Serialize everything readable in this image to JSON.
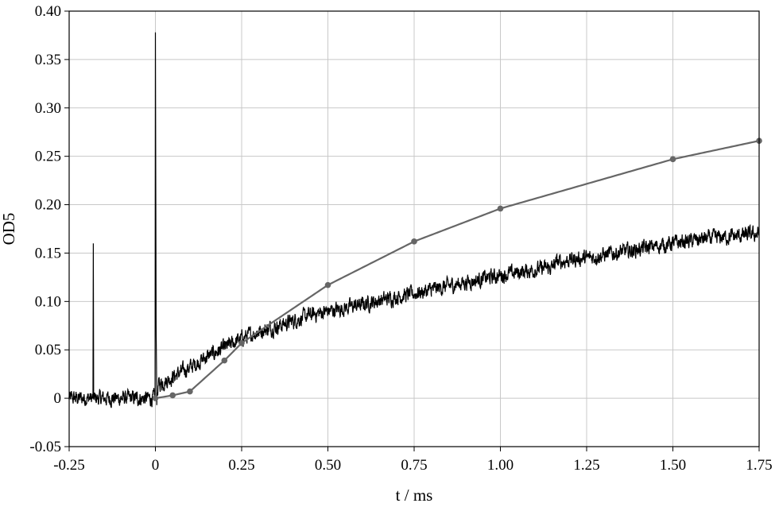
{
  "chart_data": {
    "type": "line",
    "title": "",
    "xlabel": "t / ms",
    "ylabel": "OD5",
    "xlim": [
      -0.25,
      1.75
    ],
    "ylim": [
      -0.05,
      0.4
    ],
    "grid": true,
    "x_ticks": [
      -0.25,
      0,
      0.25,
      0.5,
      0.75,
      1.0,
      1.25,
      1.5,
      1.75
    ],
    "x_tick_labels": [
      "-0.25",
      "0",
      "0.25",
      "0.50",
      "0.75",
      "1.00",
      "1.25",
      "1.50",
      "1.75"
    ],
    "y_ticks": [
      -0.05,
      0,
      0.05,
      0.1,
      0.15,
      0.2,
      0.25,
      0.3,
      0.35,
      0.4
    ],
    "y_tick_labels": [
      "-0.05",
      "0",
      "0.05",
      "0.10",
      "0.15",
      "0.20",
      "0.25",
      "0.30",
      "0.35",
      "0.40"
    ],
    "colors": {
      "measured": "#000000",
      "simulated": "#666666",
      "grid": "#c8c8c8"
    },
    "series": [
      {
        "kind": "measured-trace",
        "noise_amplitude": 0.0045,
        "x": [
          -0.25,
          -0.19,
          -0.181,
          -0.18,
          -0.179,
          -0.17,
          -0.005,
          -0.001,
          0.0,
          0.002,
          0.004,
          0.008,
          0.012,
          0.02,
          0.05,
          0.1,
          0.15,
          0.2,
          0.25,
          0.3,
          0.35,
          0.4,
          0.45,
          0.5,
          0.6,
          0.7,
          0.75,
          0.8,
          0.9,
          1.0,
          1.1,
          1.15,
          1.16,
          1.2,
          1.25,
          1.3,
          1.4,
          1.5,
          1.6,
          1.7,
          1.75
        ],
        "y": [
          0.0,
          0.0,
          0.0,
          0.16,
          0.0,
          0.0,
          0.0,
          0.0,
          0.378,
          0.08,
          0.0,
          0.012,
          0.015,
          0.016,
          0.022,
          0.032,
          0.043,
          0.052,
          0.062,
          0.069,
          0.074,
          0.08,
          0.086,
          0.09,
          0.097,
          0.105,
          0.108,
          0.112,
          0.12,
          0.127,
          0.133,
          0.135,
          0.14,
          0.143,
          0.145,
          0.148,
          0.154,
          0.16,
          0.165,
          0.168,
          0.17
        ]
      },
      {
        "kind": "simulated-curve",
        "x": [
          0.0,
          0.05,
          0.1,
          0.2,
          0.25,
          0.5,
          0.75,
          1.0,
          1.5,
          1.75
        ],
        "y": [
          0.0,
          0.003,
          0.007,
          0.039,
          0.057,
          0.117,
          0.162,
          0.196,
          0.247,
          0.266
        ]
      }
    ]
  }
}
